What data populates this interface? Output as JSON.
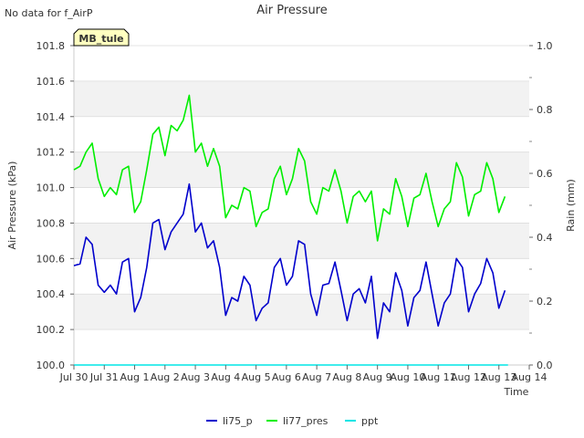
{
  "notice": "No data for f_AirP",
  "chart_data": {
    "type": "line",
    "title": "Air Pressure",
    "xlabel": "Time",
    "ylabel": "Air Pressure (kPa)",
    "y2label": "Rain (mm)",
    "badge": "MB_tule",
    "xlim": [
      0,
      15
    ],
    "ylim": [
      100.0,
      101.8
    ],
    "y2lim": [
      0.0,
      1.0
    ],
    "x_ticks": [
      {
        "x": 0,
        "label": "Jul 30"
      },
      {
        "x": 1,
        "label": "Jul 31"
      },
      {
        "x": 2,
        "label": "Aug 1"
      },
      {
        "x": 3,
        "label": "Aug 2"
      },
      {
        "x": 4,
        "label": "Aug 3"
      },
      {
        "x": 5,
        "label": "Aug 4"
      },
      {
        "x": 6,
        "label": "Aug 5"
      },
      {
        "x": 7,
        "label": "Aug 6"
      },
      {
        "x": 8,
        "label": "Aug 7"
      },
      {
        "x": 9,
        "label": "Aug 8"
      },
      {
        "x": 10,
        "label": "Aug 9"
      },
      {
        "x": 11,
        "label": "Aug 10"
      },
      {
        "x": 12,
        "label": "Aug 11"
      },
      {
        "x": 13,
        "label": "Aug 12"
      },
      {
        "x": 14,
        "label": "Aug 13"
      },
      {
        "x": 15,
        "label": "Aug 14"
      }
    ],
    "y_ticks": [
      "100.0",
      "100.2",
      "100.4",
      "100.6",
      "100.8",
      "101.0",
      "101.2",
      "101.4",
      "101.6",
      "101.8"
    ],
    "y2_ticks": [
      "0.0",
      "0.2",
      "0.4",
      "0.6",
      "0.8",
      "1.0"
    ],
    "grid_bands": true,
    "legend_position": "bottom-center",
    "series": [
      {
        "name": "li75_p",
        "color": "#0000cc",
        "x": [
          0.0,
          0.2,
          0.4,
          0.6,
          0.8,
          1.0,
          1.2,
          1.4,
          1.6,
          1.8,
          2.0,
          2.2,
          2.4,
          2.6,
          2.8,
          3.0,
          3.2,
          3.4,
          3.6,
          3.8,
          4.0,
          4.2,
          4.4,
          4.6,
          4.8,
          5.0,
          5.2,
          5.4,
          5.6,
          5.8,
          6.0,
          6.2,
          6.4,
          6.6,
          6.8,
          7.0,
          7.2,
          7.4,
          7.6,
          7.8,
          8.0,
          8.2,
          8.4,
          8.6,
          8.8,
          9.0,
          9.2,
          9.4,
          9.6,
          9.8,
          10.0,
          10.2,
          10.4,
          10.6,
          10.8,
          11.0,
          11.2,
          11.4,
          11.6,
          11.8,
          12.0,
          12.2,
          12.4,
          12.6,
          12.8,
          13.0,
          13.2,
          13.4,
          13.6,
          13.8,
          14.0,
          14.2
        ],
        "values": [
          100.56,
          100.57,
          100.72,
          100.68,
          100.45,
          100.41,
          100.45,
          100.4,
          100.58,
          100.6,
          100.3,
          100.38,
          100.55,
          100.8,
          100.82,
          100.65,
          100.75,
          100.8,
          100.85,
          101.02,
          100.75,
          100.8,
          100.66,
          100.7,
          100.55,
          100.28,
          100.38,
          100.36,
          100.5,
          100.45,
          100.25,
          100.32,
          100.35,
          100.55,
          100.6,
          100.45,
          100.5,
          100.7,
          100.68,
          100.4,
          100.28,
          100.45,
          100.46,
          100.58,
          100.42,
          100.25,
          100.4,
          100.43,
          100.35,
          100.5,
          100.15,
          100.35,
          100.3,
          100.52,
          100.42,
          100.22,
          100.38,
          100.42,
          100.58,
          100.4,
          100.22,
          100.35,
          100.4,
          100.6,
          100.55,
          100.3,
          100.4,
          100.46,
          100.6,
          100.52,
          100.32,
          100.42
        ]
      },
      {
        "name": "li77_pres",
        "color": "#00ee00",
        "x": [
          0.0,
          0.2,
          0.4,
          0.6,
          0.8,
          1.0,
          1.2,
          1.4,
          1.6,
          1.8,
          2.0,
          2.2,
          2.4,
          2.6,
          2.8,
          3.0,
          3.2,
          3.4,
          3.6,
          3.8,
          4.0,
          4.2,
          4.4,
          4.6,
          4.8,
          5.0,
          5.2,
          5.4,
          5.6,
          5.8,
          6.0,
          6.2,
          6.4,
          6.6,
          6.8,
          7.0,
          7.2,
          7.4,
          7.6,
          7.8,
          8.0,
          8.2,
          8.4,
          8.6,
          8.8,
          9.0,
          9.2,
          9.4,
          9.6,
          9.8,
          10.0,
          10.2,
          10.4,
          10.6,
          10.8,
          11.0,
          11.2,
          11.4,
          11.6,
          11.8,
          12.0,
          12.2,
          12.4,
          12.6,
          12.8,
          13.0,
          13.2,
          13.4,
          13.6,
          13.8,
          14.0,
          14.2
        ],
        "values": [
          101.1,
          101.12,
          101.2,
          101.25,
          101.05,
          100.95,
          101.0,
          100.96,
          101.1,
          101.12,
          100.86,
          100.92,
          101.1,
          101.3,
          101.34,
          101.18,
          101.35,
          101.32,
          101.38,
          101.52,
          101.2,
          101.25,
          101.12,
          101.22,
          101.12,
          100.83,
          100.9,
          100.88,
          101.0,
          100.98,
          100.78,
          100.86,
          100.88,
          101.05,
          101.12,
          100.96,
          101.05,
          101.22,
          101.15,
          100.92,
          100.85,
          101.0,
          100.98,
          101.1,
          100.98,
          100.8,
          100.95,
          100.98,
          100.92,
          100.98,
          100.7,
          100.88,
          100.85,
          101.05,
          100.95,
          100.78,
          100.94,
          100.96,
          101.08,
          100.92,
          100.78,
          100.88,
          100.92,
          101.14,
          101.06,
          100.84,
          100.96,
          100.98,
          101.14,
          101.05,
          100.86,
          100.95
        ]
      },
      {
        "name": "ppt",
        "color": "#00e5e5",
        "axis": "right",
        "x": [
          0.0,
          14.3
        ],
        "values": [
          0.0,
          0.0
        ]
      }
    ]
  }
}
